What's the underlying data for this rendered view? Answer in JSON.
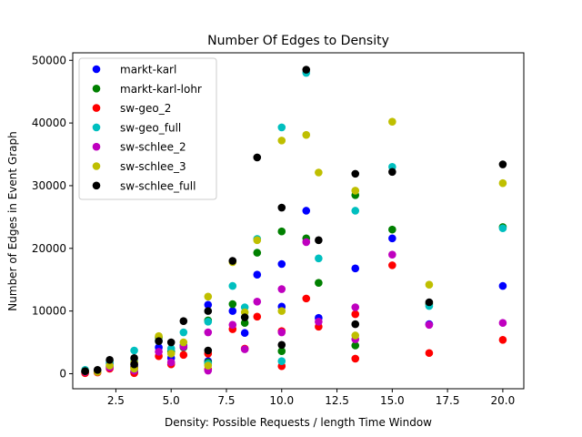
{
  "chart_data": {
    "type": "scatter",
    "title": "Number Of Edges to Density",
    "xlabel": "Density: Possible Requests / length Time Window",
    "ylabel": "Number of Edges in Event Graph",
    "xlim": [
      0.55,
      20.95
    ],
    "ylim": [
      -2400,
      51200
    ],
    "xticks": [
      2.5,
      5.0,
      7.5,
      10.0,
      12.5,
      15.0,
      17.5,
      20.0
    ],
    "xtick_labels": [
      "2.5",
      "5.0",
      "7.5",
      "10.0",
      "12.5",
      "15.0",
      "17.5",
      "20.0"
    ],
    "yticks": [
      0,
      10000,
      20000,
      30000,
      40000,
      50000
    ],
    "ytick_labels": [
      "0",
      "10000",
      "20000",
      "30000",
      "40000",
      "50000"
    ],
    "grid": false,
    "legend_position": "top-left",
    "series": [
      {
        "name": "markt-karl",
        "color": "#0000ff",
        "points": [
          [
            1.11,
            300
          ],
          [
            1.67,
            500
          ],
          [
            2.22,
            1600
          ],
          [
            3.33,
            200
          ],
          [
            3.33,
            1200
          ],
          [
            4.44,
            4200
          ],
          [
            5.0,
            2500
          ],
          [
            5.56,
            4500
          ],
          [
            6.67,
            2000
          ],
          [
            6.67,
            11000
          ],
          [
            7.78,
            10000
          ],
          [
            8.33,
            6500
          ],
          [
            8.89,
            15800
          ],
          [
            10.0,
            17500
          ],
          [
            10.0,
            10700
          ],
          [
            11.11,
            26000
          ],
          [
            11.67,
            8900
          ],
          [
            13.33,
            16800
          ],
          [
            15.0,
            21600
          ],
          [
            16.67,
            7900
          ],
          [
            20.0,
            14000
          ]
        ]
      },
      {
        "name": "markt-karl-lohr",
        "color": "#008000",
        "points": [
          [
            1.11,
            200
          ],
          [
            1.67,
            400
          ],
          [
            2.22,
            1200
          ],
          [
            3.33,
            300
          ],
          [
            3.33,
            1000
          ],
          [
            4.44,
            5800
          ],
          [
            5.0,
            3500
          ],
          [
            5.56,
            4200
          ],
          [
            6.67,
            1800
          ],
          [
            6.67,
            8500
          ],
          [
            7.78,
            11100
          ],
          [
            8.33,
            8100
          ],
          [
            8.89,
            19300
          ],
          [
            10.0,
            22700
          ],
          [
            10.0,
            3600
          ],
          [
            11.11,
            21600
          ],
          [
            11.67,
            14500
          ],
          [
            13.33,
            28500
          ],
          [
            13.33,
            4500
          ],
          [
            15.0,
            23000
          ],
          [
            16.67,
            11100
          ],
          [
            20.0,
            23400
          ]
        ]
      },
      {
        "name": "sw-geo_2",
        "color": "#ff0000",
        "points": [
          [
            1.11,
            100
          ],
          [
            1.67,
            200
          ],
          [
            2.22,
            800
          ],
          [
            3.33,
            100
          ],
          [
            3.33,
            900
          ],
          [
            4.44,
            2800
          ],
          [
            5.0,
            1500
          ],
          [
            5.56,
            3000
          ],
          [
            6.67,
            700
          ],
          [
            6.67,
            3200
          ],
          [
            7.78,
            7100
          ],
          [
            8.33,
            4000
          ],
          [
            8.89,
            9100
          ],
          [
            10.0,
            1200
          ],
          [
            10.0,
            6800
          ],
          [
            11.11,
            12000
          ],
          [
            11.67,
            7500
          ],
          [
            13.33,
            2400
          ],
          [
            13.33,
            9500
          ],
          [
            15.0,
            17300
          ],
          [
            16.67,
            3300
          ],
          [
            20.0,
            5400
          ]
        ]
      },
      {
        "name": "sw-geo_full",
        "color": "#00bfbf",
        "points": [
          [
            1.11,
            600
          ],
          [
            1.67,
            500
          ],
          [
            2.22,
            1800
          ],
          [
            3.33,
            3700
          ],
          [
            3.33,
            2000
          ],
          [
            4.44,
            5200
          ],
          [
            5.0,
            4000
          ],
          [
            5.56,
            6600
          ],
          [
            6.67,
            8300
          ],
          [
            6.67,
            1600
          ],
          [
            7.78,
            14000
          ],
          [
            8.33,
            10600
          ],
          [
            8.89,
            21500
          ],
          [
            10.0,
            39300
          ],
          [
            10.0,
            2000
          ],
          [
            11.11,
            48000
          ],
          [
            11.67,
            18400
          ],
          [
            13.33,
            26000
          ],
          [
            15.0,
            33000
          ],
          [
            16.67,
            10800
          ],
          [
            20.0,
            23200
          ]
        ]
      },
      {
        "name": "sw-schlee_2",
        "color": "#bf00bf",
        "points": [
          [
            1.11,
            300
          ],
          [
            1.67,
            500
          ],
          [
            2.22,
            1000
          ],
          [
            3.33,
            500
          ],
          [
            3.33,
            1500
          ],
          [
            4.44,
            3500
          ],
          [
            5.0,
            1800
          ],
          [
            5.56,
            4300
          ],
          [
            6.67,
            500
          ],
          [
            6.67,
            6600
          ],
          [
            7.78,
            7800
          ],
          [
            8.33,
            3900
          ],
          [
            8.89,
            11500
          ],
          [
            10.0,
            13500
          ],
          [
            10.0,
            6600
          ],
          [
            11.11,
            21000
          ],
          [
            11.67,
            8300
          ],
          [
            13.33,
            10600
          ],
          [
            13.33,
            5500
          ],
          [
            15.0,
            19000
          ],
          [
            16.67,
            7800
          ],
          [
            20.0,
            8100
          ]
        ]
      },
      {
        "name": "sw-schlee_3",
        "color": "#bfbf00",
        "points": [
          [
            1.11,
            400
          ],
          [
            1.67,
            300
          ],
          [
            2.22,
            1300
          ],
          [
            3.33,
            800
          ],
          [
            3.33,
            1800
          ],
          [
            4.44,
            6000
          ],
          [
            5.0,
            3200
          ],
          [
            5.56,
            5000
          ],
          [
            6.67,
            12300
          ],
          [
            6.67,
            1300
          ],
          [
            7.78,
            17800
          ],
          [
            8.33,
            9800
          ],
          [
            8.89,
            21300
          ],
          [
            10.0,
            37200
          ],
          [
            10.0,
            10000
          ],
          [
            11.11,
            38100
          ],
          [
            11.67,
            32100
          ],
          [
            13.33,
            29200
          ],
          [
            13.33,
            6100
          ],
          [
            15.0,
            40200
          ],
          [
            16.67,
            14200
          ],
          [
            20.0,
            30400
          ]
        ]
      },
      {
        "name": "sw-schlee_full",
        "color": "#000000",
        "points": [
          [
            1.11,
            400
          ],
          [
            1.67,
            600
          ],
          [
            2.22,
            2200
          ],
          [
            3.33,
            2500
          ],
          [
            3.33,
            1500
          ],
          [
            4.44,
            5200
          ],
          [
            5.0,
            5000
          ],
          [
            5.56,
            8400
          ],
          [
            6.67,
            10000
          ],
          [
            6.67,
            3700
          ],
          [
            7.78,
            18000
          ],
          [
            8.33,
            9000
          ],
          [
            8.89,
            34500
          ],
          [
            10.0,
            26500
          ],
          [
            10.0,
            4600
          ],
          [
            11.11,
            48500
          ],
          [
            11.67,
            21300
          ],
          [
            13.33,
            31900
          ],
          [
            13.33,
            7900
          ],
          [
            15.0,
            32200
          ],
          [
            16.67,
            11400
          ],
          [
            20.0,
            33400
          ]
        ]
      }
    ]
  }
}
